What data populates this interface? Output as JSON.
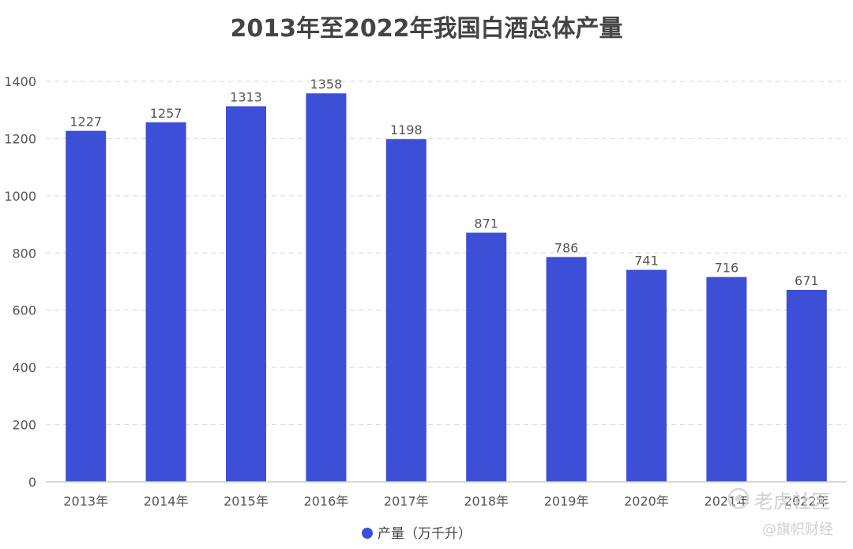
{
  "chart_data": {
    "type": "bar",
    "title": "2013年至2022年我国白酒总体产量",
    "categories": [
      "2013年",
      "2014年",
      "2015年",
      "2016年",
      "2017年",
      "2018年",
      "2019年",
      "2020年",
      "2021年",
      "2022年"
    ],
    "series": [
      {
        "name": "产量（万千升）",
        "values": [
          1227,
          1257,
          1313,
          1358,
          1198,
          871,
          786,
          741,
          716,
          671
        ],
        "color": "#3d4fd6"
      }
    ],
    "ylim": [
      0,
      1400
    ],
    "yticks": [
      0,
      200,
      400,
      600,
      800,
      1000,
      1200,
      1400
    ],
    "grid": true,
    "legend_position": "bottom-center",
    "data_labels": true
  },
  "watermarks": {
    "tiger": "老虎社区",
    "source": "@旗帜财经"
  },
  "colors": {
    "bar": "#3d4fd6",
    "grid": "#dddddd",
    "axis": "#cccccc"
  }
}
